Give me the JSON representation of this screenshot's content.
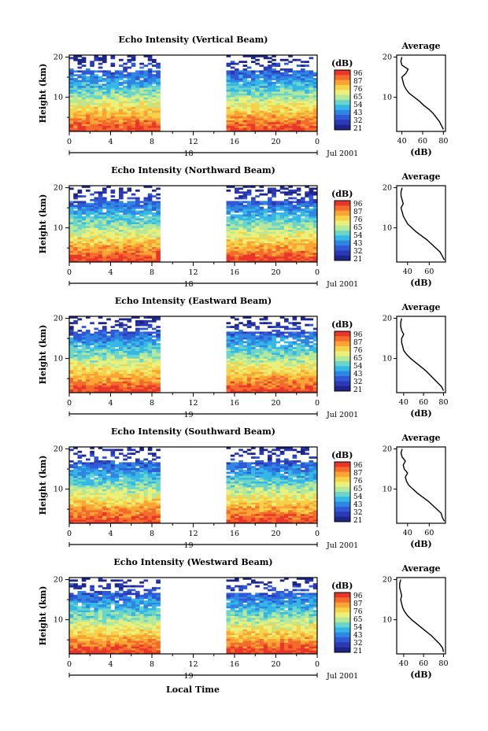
{
  "figure": {
    "xlabel": "Local Time",
    "date_label": "Jul 2001",
    "day_label_first": "18",
    "day_label_rest": "19",
    "average_title": "Average"
  },
  "colorscale": {
    "unit": "(dB)",
    "ticks": [
      "96",
      "87",
      "76",
      "65",
      "54",
      "43",
      "32",
      "21"
    ],
    "colors": [
      "#e8372a",
      "#f46b2c",
      "#f9a435",
      "#f6d24a",
      "#eaf07a",
      "#b5e89a",
      "#6ad5c8",
      "#34b6e6",
      "#2e86e2",
      "#2f59d6",
      "#2b39b4",
      "#1c2688"
    ]
  },
  "chart_data": [
    {
      "type": "heatmap",
      "title": "Echo Intensity (Vertical Beam)",
      "ylabel": "Height (km)",
      "xlabel": "Local Time",
      "x_ticks": [
        "0",
        "4",
        "8",
        "12",
        "16",
        "20",
        "0"
      ],
      "y_ticks": [
        "20",
        "10"
      ],
      "xlim": [
        0,
        24
      ],
      "ylim": [
        1.5,
        20.5
      ],
      "data_gap_hours": [
        9,
        15
      ],
      "z_range_db": [
        21,
        96
      ],
      "day_label": "18",
      "average": {
        "xlabel": "(dB)",
        "x_ticks": [
          "40",
          "60",
          "80"
        ],
        "xlim": [
          35,
          82
        ],
        "profile": [
          [
            2,
            80
          ],
          [
            3,
            78
          ],
          [
            4,
            76
          ],
          [
            5,
            73
          ],
          [
            6,
            70
          ],
          [
            7,
            66
          ],
          [
            8,
            61
          ],
          [
            9,
            57
          ],
          [
            10,
            52
          ],
          [
            11,
            47
          ],
          [
            12,
            44
          ],
          [
            13,
            42
          ],
          [
            14,
            41
          ],
          [
            15,
            40
          ],
          [
            16,
            44
          ],
          [
            17,
            46
          ],
          [
            18,
            40
          ],
          [
            19,
            39
          ],
          [
            20,
            40
          ]
        ]
      }
    },
    {
      "type": "heatmap",
      "title": "Echo Intensity (Northward Beam)",
      "ylabel": "Height (km)",
      "xlabel": "Local Time",
      "x_ticks": [
        "0",
        "4",
        "8",
        "12",
        "16",
        "20",
        "0"
      ],
      "y_ticks": [
        "20",
        "10"
      ],
      "xlim": [
        0,
        24
      ],
      "ylim": [
        1.5,
        20.5
      ],
      "data_gap_hours": [
        9,
        15
      ],
      "z_range_db": [
        21,
        96
      ],
      "day_label": "18",
      "average": {
        "xlabel": "(dB)",
        "x_ticks": [
          "40",
          "60"
        ],
        "xlim": [
          30,
          75
        ],
        "profile": [
          [
            2,
            74
          ],
          [
            3,
            72
          ],
          [
            4,
            70
          ],
          [
            5,
            66
          ],
          [
            6,
            62
          ],
          [
            7,
            58
          ],
          [
            8,
            53
          ],
          [
            9,
            48
          ],
          [
            10,
            44
          ],
          [
            11,
            40
          ],
          [
            12,
            38
          ],
          [
            13,
            36
          ],
          [
            14,
            35
          ],
          [
            15,
            34
          ],
          [
            16,
            36
          ],
          [
            17,
            35
          ],
          [
            18,
            34
          ],
          [
            19,
            34
          ],
          [
            20,
            35
          ]
        ]
      }
    },
    {
      "type": "heatmap",
      "title": "Echo Intensity (Eastward Beam)",
      "ylabel": "Height (km)",
      "xlabel": "Local Time",
      "x_ticks": [
        "0",
        "4",
        "8",
        "12",
        "16",
        "20",
        "0"
      ],
      "y_ticks": [
        "20",
        "10"
      ],
      "xlim": [
        0,
        24
      ],
      "ylim": [
        1.5,
        20.5
      ],
      "data_gap_hours": [
        9,
        15
      ],
      "z_range_db": [
        21,
        96
      ],
      "day_label": "19",
      "average": {
        "xlabel": "(dB)",
        "x_ticks": [
          "40",
          "60",
          "80"
        ],
        "xlim": [
          33,
          82
        ],
        "profile": [
          [
            2,
            80
          ],
          [
            3,
            78
          ],
          [
            4,
            74
          ],
          [
            5,
            70
          ],
          [
            6,
            66
          ],
          [
            7,
            62
          ],
          [
            8,
            57
          ],
          [
            9,
            52
          ],
          [
            10,
            47
          ],
          [
            11,
            43
          ],
          [
            12,
            40
          ],
          [
            13,
            39
          ],
          [
            14,
            38
          ],
          [
            15,
            38
          ],
          [
            16,
            40
          ],
          [
            17,
            38
          ],
          [
            18,
            37
          ],
          [
            19,
            37
          ],
          [
            20,
            38
          ]
        ]
      }
    },
    {
      "type": "heatmap",
      "title": "Echo Intensity (Southward Beam)",
      "ylabel": "Height (km)",
      "xlabel": "Local Time",
      "x_ticks": [
        "0",
        "4",
        "8",
        "12",
        "16",
        "20",
        "0"
      ],
      "y_ticks": [
        "20",
        "10"
      ],
      "xlim": [
        0,
        24
      ],
      "ylim": [
        1.5,
        20.5
      ],
      "data_gap_hours": [
        9,
        15
      ],
      "z_range_db": [
        21,
        96
      ],
      "day_label": "19",
      "average": {
        "xlabel": "(dB)",
        "x_ticks": [
          "40",
          "60"
        ],
        "xlim": [
          30,
          75
        ],
        "profile": [
          [
            2,
            74
          ],
          [
            3,
            72
          ],
          [
            4,
            71
          ],
          [
            5,
            67
          ],
          [
            6,
            63
          ],
          [
            7,
            59
          ],
          [
            8,
            54
          ],
          [
            9,
            49
          ],
          [
            10,
            45
          ],
          [
            11,
            41
          ],
          [
            12,
            39
          ],
          [
            13,
            38
          ],
          [
            14,
            40
          ],
          [
            15,
            37
          ],
          [
            16,
            36
          ],
          [
            17,
            38
          ],
          [
            18,
            35
          ],
          [
            19,
            34
          ],
          [
            20,
            35
          ]
        ]
      }
    },
    {
      "type": "heatmap",
      "title": "Echo Intensity (Westward Beam)",
      "ylabel": "Height (km)",
      "xlabel": "Local Time",
      "x_ticks": [
        "0",
        "4",
        "8",
        "12",
        "16",
        "20",
        "0"
      ],
      "y_ticks": [
        "20",
        "10"
      ],
      "xlim": [
        0,
        24
      ],
      "ylim": [
        1.5,
        20.5
      ],
      "data_gap_hours": [
        9,
        15
      ],
      "z_range_db": [
        21,
        96
      ],
      "day_label": "19",
      "average": {
        "xlabel": "(dB)",
        "x_ticks": [
          "40",
          "60",
          "80"
        ],
        "xlim": [
          33,
          82
        ],
        "profile": [
          [
            2,
            80
          ],
          [
            3,
            79
          ],
          [
            4,
            76
          ],
          [
            5,
            72
          ],
          [
            6,
            68
          ],
          [
            7,
            63
          ],
          [
            8,
            58
          ],
          [
            9,
            53
          ],
          [
            10,
            48
          ],
          [
            11,
            44
          ],
          [
            12,
            41
          ],
          [
            13,
            39
          ],
          [
            14,
            38
          ],
          [
            15,
            37
          ],
          [
            16,
            38
          ],
          [
            17,
            37
          ],
          [
            18,
            36
          ],
          [
            19,
            36
          ],
          [
            20,
            37
          ]
        ]
      }
    }
  ]
}
